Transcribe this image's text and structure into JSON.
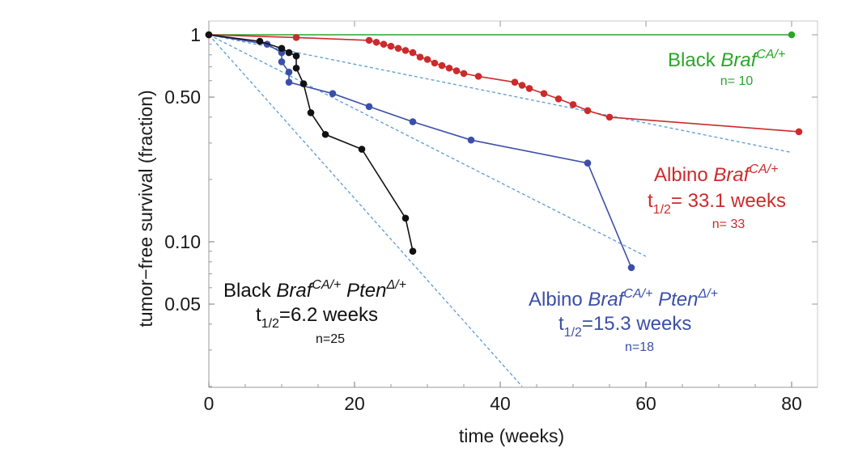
{
  "chart_data": {
    "type": "line",
    "xlabel": "time (weeks)",
    "ylabel": "tumor−free survival (fraction)",
    "xlim": [
      0,
      84
    ],
    "ylim": [
      0.018,
      1.05
    ],
    "yscale": "log",
    "xticks": [
      0,
      20,
      40,
      60,
      80
    ],
    "xtick_labels": [
      "0",
      "20",
      "40",
      "60",
      "80"
    ],
    "yticks": [
      1,
      0.5,
      0.1,
      0.05
    ],
    "ytick_labels": [
      "1",
      "0.50",
      "0.10",
      "0.05"
    ],
    "grid": false,
    "series": [
      {
        "key": "black_braf",
        "color": "#2aa62a",
        "x": [
          0,
          80
        ],
        "y": [
          1.0,
          1.0
        ],
        "label": {
          "line1": "Black ",
          "gene1": "Braf",
          "sup1": "CA/+",
          "n": "n= 10"
        }
      },
      {
        "key": "albino_braf",
        "color": "#cc2b2b",
        "x": [
          0,
          12,
          22,
          23,
          24,
          25,
          26,
          27,
          28,
          29,
          30,
          31,
          32,
          33,
          34,
          35,
          37,
          42,
          43,
          44,
          46,
          48,
          50,
          52,
          55,
          81
        ],
        "y": [
          1.0,
          0.97,
          0.94,
          0.92,
          0.9,
          0.88,
          0.86,
          0.84,
          0.82,
          0.78,
          0.76,
          0.73,
          0.71,
          0.69,
          0.67,
          0.65,
          0.63,
          0.59,
          0.57,
          0.55,
          0.52,
          0.49,
          0.46,
          0.43,
          0.4,
          0.34
        ],
        "fit": {
          "x": [
            0,
            80
          ],
          "y": [
            1.0,
            0.27
          ]
        },
        "label": {
          "line1": "Albino ",
          "gene1": "Braf",
          "sup1": "CA/+",
          "t": "t",
          "tsub": "1/2",
          "tval": "= 33.1 weeks",
          "n": "n= 33"
        }
      },
      {
        "key": "albino_braf_pten",
        "color": "#3b4fa8",
        "x": [
          0,
          8,
          10,
          10,
          11,
          11,
          17,
          22,
          28,
          36,
          52,
          58
        ],
        "y": [
          1.0,
          0.9,
          0.82,
          0.74,
          0.66,
          0.59,
          0.52,
          0.45,
          0.38,
          0.31,
          0.24,
          0.075
        ],
        "fit": {
          "x": [
            0,
            60
          ],
          "y": [
            1.0,
            0.085
          ]
        },
        "label": {
          "line1": "Albino ",
          "gene1": "Braf",
          "sup1": "CA/+",
          "gene2": " Pten",
          "sup2": "Δ/+",
          "t": "t",
          "tsub": "1/2",
          "tval": "=15.3 weeks",
          "n": "n=18"
        }
      },
      {
        "key": "black_braf_pten",
        "color": "#111111",
        "x": [
          0,
          7,
          10,
          11,
          12,
          12,
          13,
          14,
          16,
          21,
          27,
          28
        ],
        "y": [
          1.0,
          0.93,
          0.86,
          0.82,
          0.79,
          0.69,
          0.58,
          0.42,
          0.33,
          0.28,
          0.13,
          0.09
        ],
        "fit": {
          "x": [
            0,
            43
          ],
          "y": [
            1.0,
            0.02
          ]
        },
        "label": {
          "line1": "Black ",
          "gene1": "Braf",
          "sup1": "CA/+",
          "gene2": " Pten",
          "sup2": "Δ/+",
          "t": "t",
          "tsub": "1/2",
          "tval": "=6.2 weeks",
          "n": "n=25"
        }
      }
    ]
  }
}
